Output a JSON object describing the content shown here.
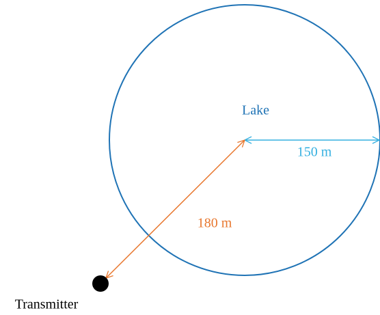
{
  "lake_label": "Lake",
  "radius_label": "150 m",
  "distance_label": "180 m",
  "transmitter_label": "Transmitter"
}
